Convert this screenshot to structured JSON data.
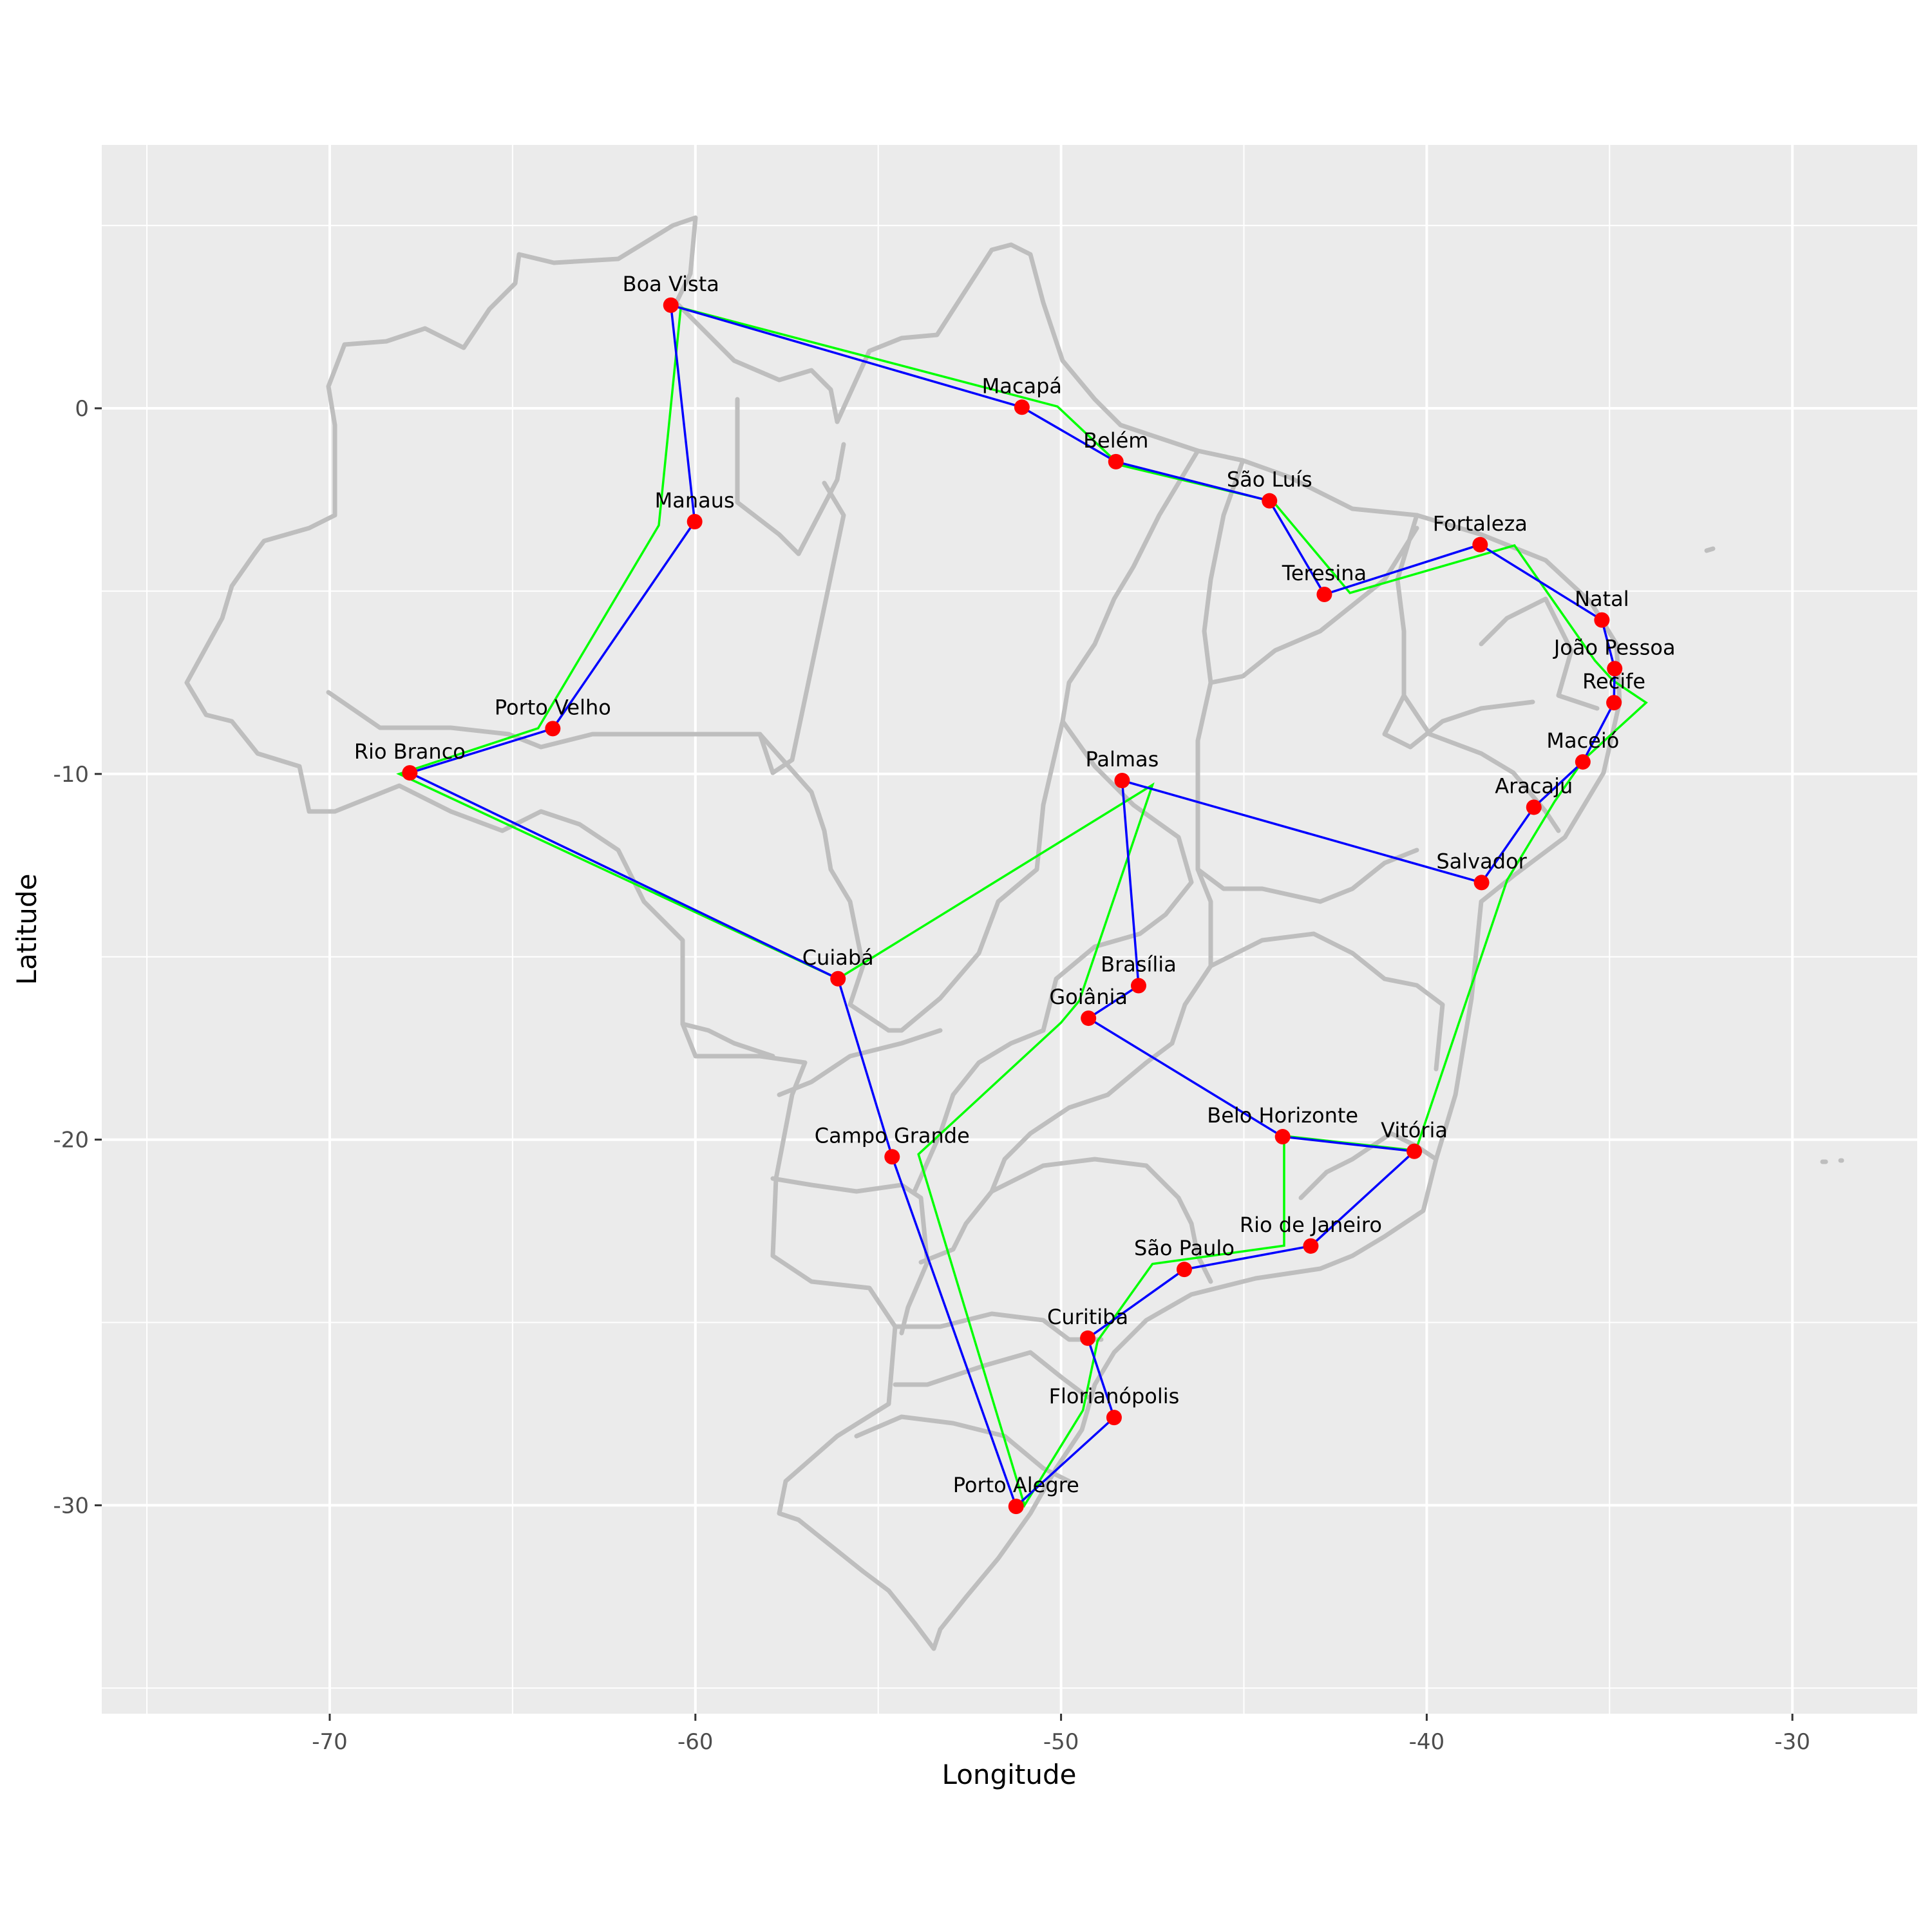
{
  "chart_data": {
    "type": "scatter",
    "title": "",
    "xlabel": "Longitude",
    "ylabel": "Latitude",
    "xlim": [
      -76.2,
      -26.6
    ],
    "ylim": [
      -35.7,
      7.2
    ],
    "x_ticks": [
      -70,
      -60,
      -50,
      -40,
      -30
    ],
    "y_ticks": [
      0,
      -10,
      -20,
      -30
    ],
    "grid": true,
    "legend": null,
    "background": "#EBEBEB",
    "colors": {
      "points": "#FF0000",
      "route_blue": "#0000FF",
      "route_green": "#00FF00",
      "borders": "#BEBEBE"
    },
    "cities": [
      {
        "name": "Boa Vista",
        "lon": -60.67,
        "lat": 2.82
      },
      {
        "name": "Macapá",
        "lon": -51.07,
        "lat": 0.03
      },
      {
        "name": "Belém",
        "lon": -48.5,
        "lat": -1.46
      },
      {
        "name": "São Luís",
        "lon": -44.3,
        "lat": -2.53
      },
      {
        "name": "Teresina",
        "lon": -42.8,
        "lat": -5.09
      },
      {
        "name": "Fortaleza",
        "lon": -38.54,
        "lat": -3.73
      },
      {
        "name": "Natal",
        "lon": -35.21,
        "lat": -5.79
      },
      {
        "name": "João Pessoa",
        "lon": -34.86,
        "lat": -7.12
      },
      {
        "name": "Recife",
        "lon": -34.88,
        "lat": -8.05
      },
      {
        "name": "Maceió",
        "lon": -35.73,
        "lat": -9.67
      },
      {
        "name": "Aracaju",
        "lon": -37.07,
        "lat": -10.91
      },
      {
        "name": "Salvador",
        "lon": -38.5,
        "lat": -12.97
      },
      {
        "name": "Palmas",
        "lon": -48.33,
        "lat": -10.18
      },
      {
        "name": "Brasília",
        "lon": -47.88,
        "lat": -15.79
      },
      {
        "name": "Goiânia",
        "lon": -49.25,
        "lat": -16.68
      },
      {
        "name": "Belo Horizonte",
        "lon": -43.94,
        "lat": -19.92
      },
      {
        "name": "Vitória",
        "lon": -40.34,
        "lat": -20.32
      },
      {
        "name": "Rio de Janeiro",
        "lon": -43.17,
        "lat": -22.91
      },
      {
        "name": "São Paulo",
        "lon": -46.63,
        "lat": -23.55
      },
      {
        "name": "Curitiba",
        "lon": -49.27,
        "lat": -25.43
      },
      {
        "name": "Florianópolis",
        "lon": -48.55,
        "lat": -27.6
      },
      {
        "name": "Porto Alegre",
        "lon": -51.23,
        "lat": -30.03
      },
      {
        "name": "Campo Grande",
        "lon": -54.62,
        "lat": -20.47
      },
      {
        "name": "Cuiabá",
        "lon": -56.1,
        "lat": -15.6
      },
      {
        "name": "Rio Branco",
        "lon": -67.81,
        "lat": -9.97
      },
      {
        "name": "Porto Velho",
        "lon": -63.9,
        "lat": -8.76
      },
      {
        "name": "Manaus",
        "lon": -60.02,
        "lat": -3.1
      }
    ],
    "series": [
      {
        "name": "route_blue",
        "color": "#0000FF",
        "order": [
          "Boa Vista",
          "Macapá",
          "Belém",
          "São Luís",
          "Teresina",
          "Fortaleza",
          "Natal",
          "João Pessoa",
          "Recife",
          "Maceió",
          "Aracaju",
          "Salvador",
          "Palmas",
          "Brasília",
          "Goiânia",
          "Belo Horizonte",
          "Vitória",
          "Rio de Janeiro",
          "São Paulo",
          "Curitiba",
          "Florianópolis",
          "Porto Alegre",
          "Campo Grande",
          "Cuiabá",
          "Rio Branco",
          "Porto Velho",
          "Manaus",
          "Boa Vista"
        ]
      },
      {
        "name": "route_green",
        "color": "#00FF00",
        "points": [
          [
            -60.4,
            2.75
          ],
          [
            -50.1,
            0.05
          ],
          [
            -48.4,
            -1.55
          ],
          [
            -44.2,
            -2.55
          ],
          [
            -42.1,
            -5.05
          ],
          [
            -37.6,
            -3.75
          ],
          [
            -35.4,
            -6.9
          ],
          [
            -34.9,
            -7.45
          ],
          [
            -34.0,
            -8.05
          ],
          [
            -35.7,
            -9.6
          ],
          [
            -36.5,
            -10.75
          ],
          [
            -37.8,
            -12.9
          ],
          [
            -40.3,
            -20.3
          ],
          [
            -43.9,
            -19.9
          ],
          [
            -43.9,
            -22.9
          ],
          [
            -47.5,
            -23.4
          ],
          [
            -49.0,
            -25.5
          ],
          [
            -49.4,
            -27.4
          ],
          [
            -51.0,
            -30.0
          ],
          [
            -53.9,
            -20.4
          ],
          [
            -50.0,
            -16.8
          ],
          [
            -49.5,
            -16.2
          ],
          [
            -47.5,
            -10.3
          ],
          [
            -56.1,
            -15.6
          ],
          [
            -68.1,
            -10.0
          ],
          [
            -64.3,
            -8.75
          ],
          [
            -61.0,
            -3.2
          ],
          [
            -60.4,
            2.75
          ]
        ]
      }
    ]
  },
  "axes": {
    "x_label": "Longitude",
    "y_label": "Latitude",
    "x_tick_labels": [
      "-70",
      "-60",
      "-50",
      "-40",
      "-30"
    ],
    "y_tick_labels": [
      "0",
      "-10",
      "-20",
      "-30"
    ]
  }
}
